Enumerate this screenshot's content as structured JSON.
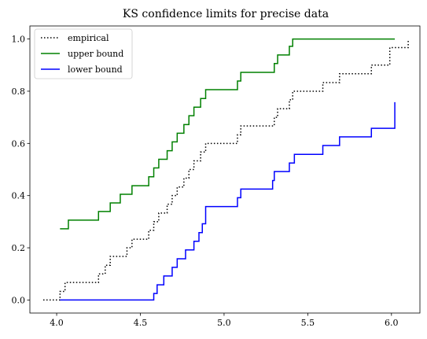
{
  "chart_data": {
    "type": "line",
    "title": "KS confidence limits for precise data",
    "xlabel": "",
    "ylabel": "",
    "xlim": [
      3.84,
      6.17
    ],
    "ylim": [
      -0.05,
      1.05
    ],
    "xticks": [
      4.0,
      4.5,
      5.0,
      5.5,
      6.0
    ],
    "xtick_labels": [
      "4.0",
      "4.5",
      "5.0",
      "5.5",
      "6.0"
    ],
    "yticks": [
      0.0,
      0.2,
      0.4,
      0.6,
      0.8,
      1.0
    ],
    "ytick_labels": [
      "0.0",
      "0.2",
      "0.4",
      "0.6",
      "0.8",
      "1.0"
    ],
    "grid": false,
    "legend_position": "upper-left",
    "series": [
      {
        "name": "empirical",
        "color": "#000000",
        "style": "dotted",
        "step": "post",
        "x": [
          3.92,
          4.0,
          4.02,
          4.05,
          4.25,
          4.29,
          4.32,
          4.38,
          4.42,
          4.45,
          4.55,
          4.58,
          4.61,
          4.66,
          4.69,
          4.72,
          4.76,
          4.79,
          4.82,
          4.86,
          4.89,
          5.08,
          5.1,
          5.3,
          5.32,
          5.39,
          5.41,
          5.59,
          5.69,
          5.88,
          5.99,
          6.1
        ],
        "y": [
          0.0,
          0.0,
          0.033,
          0.067,
          0.1,
          0.133,
          0.167,
          0.167,
          0.2,
          0.233,
          0.267,
          0.3,
          0.333,
          0.367,
          0.4,
          0.433,
          0.467,
          0.5,
          0.533,
          0.567,
          0.6,
          0.633,
          0.667,
          0.7,
          0.733,
          0.767,
          0.8,
          0.833,
          0.867,
          0.9,
          0.967,
          1.0
        ]
      },
      {
        "name": "upper bound",
        "color": "#008000",
        "style": "solid",
        "step": "post",
        "x": [
          4.02,
          4.07,
          4.25,
          4.32,
          4.38,
          4.45,
          4.55,
          4.58,
          4.61,
          4.66,
          4.69,
          4.72,
          4.76,
          4.79,
          4.82,
          4.86,
          4.89,
          5.08,
          5.1,
          5.3,
          5.32,
          5.39,
          5.41,
          6.02
        ],
        "y": [
          0.273,
          0.306,
          0.339,
          0.372,
          0.405,
          0.438,
          0.472,
          0.506,
          0.539,
          0.572,
          0.606,
          0.639,
          0.672,
          0.706,
          0.739,
          0.772,
          0.806,
          0.839,
          0.872,
          0.906,
          0.939,
          0.972,
          1.0,
          1.0
        ]
      },
      {
        "name": "lower bound",
        "color": "#0000ff",
        "style": "solid",
        "step": "post",
        "x": [
          4.02,
          4.58,
          4.6,
          4.64,
          4.69,
          4.72,
          4.77,
          4.82,
          4.85,
          4.87,
          4.89,
          5.08,
          5.1,
          5.29,
          5.3,
          5.39,
          5.42,
          5.59,
          5.69,
          5.88,
          6.02
        ],
        "y": [
          0.0,
          0.025,
          0.058,
          0.092,
          0.125,
          0.158,
          0.192,
          0.225,
          0.258,
          0.292,
          0.358,
          0.392,
          0.425,
          0.458,
          0.492,
          0.525,
          0.558,
          0.592,
          0.625,
          0.658,
          0.758
        ]
      }
    ]
  }
}
